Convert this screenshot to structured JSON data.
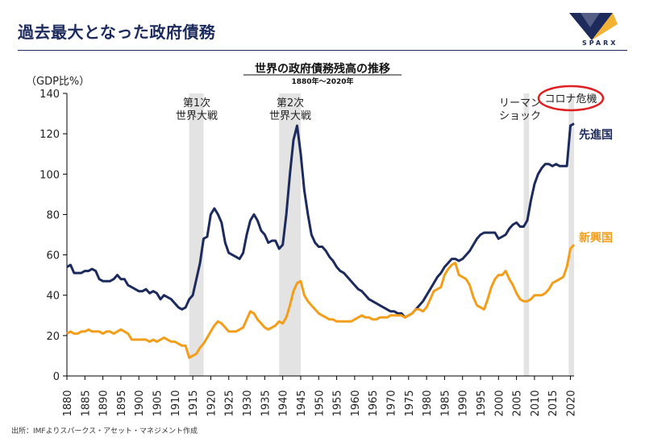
{
  "header": {
    "title": "過去最大となった政府債務"
  },
  "logo": {
    "brand": "SPARX"
  },
  "footer": {
    "source": "出所：IMFよりスパークス・アセット・マネジメント作成"
  },
  "colors": {
    "advanced": "#1c2a5c",
    "emerging": "#f29e1b",
    "band": "#e3e3e3",
    "circle": "#e02020",
    "axis": "#000000"
  },
  "chart_data": {
    "type": "line",
    "title": "世界の政府債務残高の推移",
    "subtitle": "1880年～2020年",
    "ylabel": "（GDP比%）",
    "xlabel": "",
    "xlim": [
      1880,
      2021
    ],
    "ylim": [
      0,
      140
    ],
    "yticks": [
      0,
      20,
      40,
      60,
      80,
      100,
      120,
      140
    ],
    "xticks": [
      1880,
      1885,
      1890,
      1895,
      1900,
      1905,
      1910,
      1915,
      1920,
      1925,
      1930,
      1935,
      1940,
      1945,
      1950,
      1955,
      1960,
      1965,
      1970,
      1975,
      1980,
      1985,
      1990,
      1995,
      2000,
      2005,
      2010,
      2015,
      2020
    ],
    "shaded_periods": [
      {
        "label": "第1次\n世界大戦",
        "start": 1914,
        "end": 1918,
        "highlight": false
      },
      {
        "label": "第2次\n世界大戦",
        "start": 1939,
        "end": 1945,
        "highlight": false
      },
      {
        "label": "リーマン\nショック",
        "start": 2007,
        "end": 2008.5,
        "highlight": false
      },
      {
        "label": "コロナ危機",
        "start": 2019.5,
        "end": 2021,
        "highlight": true
      }
    ],
    "series": [
      {
        "name": "先進国",
        "color": "#1c2a5c",
        "x": [
          1880,
          1881,
          1882,
          1883,
          1884,
          1885,
          1886,
          1887,
          1888,
          1889,
          1890,
          1891,
          1892,
          1893,
          1894,
          1895,
          1896,
          1897,
          1898,
          1899,
          1900,
          1901,
          1902,
          1903,
          1904,
          1905,
          1906,
          1907,
          1908,
          1909,
          1910,
          1911,
          1912,
          1913,
          1914,
          1915,
          1916,
          1917,
          1918,
          1919,
          1920,
          1921,
          1922,
          1923,
          1924,
          1925,
          1926,
          1927,
          1928,
          1929,
          1930,
          1931,
          1932,
          1933,
          1934,
          1935,
          1936,
          1937,
          1938,
          1939,
          1940,
          1941,
          1942,
          1943,
          1944,
          1945,
          1946,
          1947,
          1948,
          1949,
          1950,
          1951,
          1952,
          1953,
          1954,
          1955,
          1956,
          1957,
          1958,
          1959,
          1960,
          1961,
          1962,
          1963,
          1964,
          1965,
          1966,
          1967,
          1968,
          1969,
          1970,
          1971,
          1972,
          1973,
          1974,
          1975,
          1976,
          1977,
          1978,
          1979,
          1980,
          1981,
          1982,
          1983,
          1984,
          1985,
          1986,
          1987,
          1988,
          1989,
          1990,
          1991,
          1992,
          1993,
          1994,
          1995,
          1996,
          1997,
          1998,
          1999,
          2000,
          2001,
          2002,
          2003,
          2004,
          2005,
          2006,
          2007,
          2008,
          2009,
          2010,
          2011,
          2012,
          2013,
          2014,
          2015,
          2016,
          2017,
          2018,
          2019,
          2020,
          2021
        ],
        "values": [
          54,
          55,
          51,
          51,
          51,
          52,
          52,
          53,
          52,
          48,
          47,
          47,
          47,
          48,
          50,
          48,
          48,
          45,
          44,
          43,
          42,
          42,
          43,
          41,
          42,
          41,
          38,
          40,
          39,
          38,
          36,
          34,
          33,
          34,
          38,
          40,
          48,
          56,
          68,
          69,
          80,
          83,
          80,
          76,
          66,
          61,
          60,
          59,
          58,
          61,
          70,
          77,
          80,
          77,
          72,
          70,
          66,
          67,
          67,
          63,
          65,
          80,
          100,
          117,
          124,
          110,
          92,
          80,
          70,
          66,
          64,
          64,
          62,
          59,
          57,
          54,
          52,
          51,
          49,
          47,
          45,
          43,
          42,
          40,
          38,
          37,
          36,
          35,
          34,
          33,
          32,
          32,
          31,
          31,
          29,
          30,
          31,
          33,
          35,
          37,
          40,
          43,
          46,
          49,
          51,
          54,
          56,
          58,
          58,
          57,
          58,
          60,
          62,
          65,
          68,
          70,
          71,
          71,
          71,
          71,
          68,
          69,
          70,
          73,
          75,
          76,
          74,
          74,
          77,
          87,
          95,
          100,
          103,
          105,
          105,
          104,
          105,
          104,
          104,
          104,
          124,
          125
        ]
      },
      {
        "name": "新興国",
        "color": "#f29e1b",
        "x": [
          1880,
          1881,
          1882,
          1883,
          1884,
          1885,
          1886,
          1887,
          1888,
          1889,
          1890,
          1891,
          1892,
          1893,
          1894,
          1895,
          1896,
          1897,
          1898,
          1899,
          1900,
          1901,
          1902,
          1903,
          1904,
          1905,
          1906,
          1907,
          1908,
          1909,
          1910,
          1911,
          1912,
          1913,
          1914,
          1915,
          1916,
          1917,
          1918,
          1919,
          1920,
          1921,
          1922,
          1923,
          1924,
          1925,
          1926,
          1927,
          1928,
          1929,
          1930,
          1931,
          1932,
          1933,
          1934,
          1935,
          1936,
          1937,
          1938,
          1939,
          1940,
          1941,
          1942,
          1943,
          1944,
          1945,
          1946,
          1947,
          1948,
          1949,
          1950,
          1951,
          1952,
          1953,
          1954,
          1955,
          1956,
          1957,
          1958,
          1959,
          1960,
          1961,
          1962,
          1963,
          1964,
          1965,
          1966,
          1967,
          1968,
          1969,
          1970,
          1971,
          1972,
          1973,
          1974,
          1975,
          1976,
          1977,
          1978,
          1979,
          1980,
          1981,
          1982,
          1983,
          1984,
          1985,
          1986,
          1987,
          1988,
          1989,
          1990,
          1991,
          1992,
          1993,
          1994,
          1995,
          1996,
          1997,
          1998,
          1999,
          2000,
          2001,
          2002,
          2003,
          2004,
          2005,
          2006,
          2007,
          2008,
          2009,
          2010,
          2011,
          2012,
          2013,
          2014,
          2015,
          2016,
          2017,
          2018,
          2019,
          2020,
          2021
        ],
        "values": [
          21,
          22,
          21,
          21,
          22,
          22,
          23,
          22,
          22,
          22,
          21,
          22,
          22,
          21,
          22,
          23,
          22,
          21,
          18,
          18,
          18,
          18,
          18,
          17,
          18,
          17,
          18,
          19,
          18,
          17,
          17,
          16,
          15,
          15,
          9,
          10,
          11,
          14,
          16,
          19,
          22,
          25,
          27,
          26,
          24,
          22,
          22,
          22,
          23,
          24,
          28,
          32,
          31,
          28,
          26,
          24,
          23,
          24,
          25,
          27,
          26,
          29,
          35,
          42,
          46,
          47,
          40,
          37,
          35,
          33,
          31,
          30,
          29,
          28,
          28,
          27,
          27,
          27,
          27,
          27,
          28,
          29,
          30,
          29,
          29,
          28,
          28,
          29,
          29,
          29,
          30,
          30,
          30,
          30,
          29,
          30,
          31,
          33,
          33,
          32,
          34,
          38,
          42,
          43,
          44,
          50,
          53,
          55,
          56,
          50,
          49,
          48,
          45,
          39,
          35,
          34,
          33,
          38,
          44,
          48,
          50,
          50,
          52,
          48,
          45,
          41,
          38,
          37,
          37,
          38,
          40,
          40,
          40,
          41,
          43,
          46,
          47,
          48,
          49,
          54,
          63,
          65
        ]
      }
    ]
  }
}
